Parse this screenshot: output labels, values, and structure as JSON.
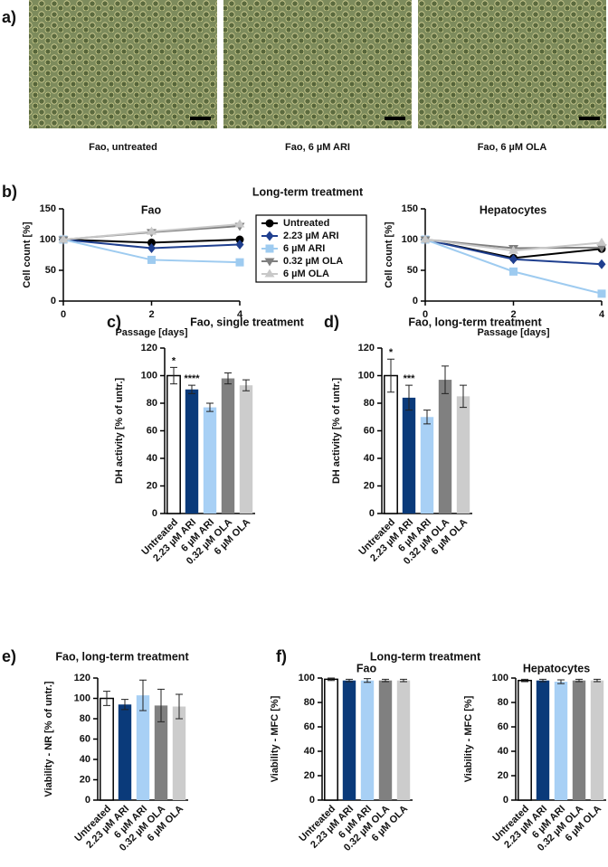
{
  "micrographs": {
    "panel": "a)",
    "captions": [
      "Fao, untreated",
      "Fao, 6 µM ARI",
      "Fao, 6 µM OLA"
    ]
  },
  "chart_data": [
    {
      "type": "line",
      "panel": "b)",
      "group_title": "Long-term treatment",
      "title": "Fao",
      "xlabel": "Passage [days]",
      "ylabel": "Cell count [%]",
      "x": [
        0,
        2,
        4
      ],
      "xlim": [
        0,
        4
      ],
      "xticks": [
        0,
        2,
        4
      ],
      "ylim": [
        0,
        150
      ],
      "yticks": [
        0,
        50,
        100,
        150
      ],
      "legend": true,
      "series": [
        {
          "name": "Untreated",
          "color": "#000000",
          "marker": "circle",
          "values": [
            100,
            95,
            100
          ]
        },
        {
          "name": "2.23 µM ARI",
          "color": "#1f3f8f",
          "marker": "diamond",
          "values": [
            100,
            86,
            92
          ]
        },
        {
          "name": "6 µM ARI",
          "color": "#9ecbf0",
          "marker": "square",
          "values": [
            100,
            67,
            63
          ]
        },
        {
          "name": "0.32 µM OLA",
          "color": "#7f7f7f",
          "marker": "triangle-down",
          "values": [
            100,
            112,
            122
          ]
        },
        {
          "name": "6 µM OLA",
          "color": "#c8c8c8",
          "marker": "triangle-up",
          "values": [
            100,
            113,
            125
          ]
        }
      ]
    },
    {
      "type": "line",
      "title": "Hepatocytes",
      "xlabel": "Passage [days]",
      "ylabel": "Cell count [%]",
      "x": [
        0,
        2,
        4
      ],
      "xlim": [
        0,
        4
      ],
      "xticks": [
        0,
        2,
        4
      ],
      "ylim": [
        0,
        150
      ],
      "yticks": [
        0,
        50,
        100,
        150
      ],
      "series": [
        {
          "color": "#000000",
          "marker": "circle",
          "values": [
            100,
            70,
            85
          ]
        },
        {
          "color": "#1f3f8f",
          "marker": "diamond",
          "values": [
            100,
            68,
            60
          ]
        },
        {
          "color": "#9ecbf0",
          "marker": "square",
          "values": [
            100,
            48,
            12
          ]
        },
        {
          "color": "#7f7f7f",
          "marker": "triangle-down",
          "values": [
            100,
            86,
            87
          ]
        },
        {
          "color": "#c8c8c8",
          "marker": "triangle-up",
          "values": [
            100,
            82,
            95
          ]
        }
      ]
    },
    {
      "type": "bar",
      "panel": "c)",
      "title": "Fao, single treatment",
      "ylabel": "DH activity [% of untr.]",
      "categories": [
        "Untreated",
        "2.23 µM ARI",
        "6 µM ARI",
        "0.32 µM OLA",
        "6 µM OLA"
      ],
      "values": [
        100,
        90,
        77,
        98,
        93
      ],
      "errors": [
        6,
        3,
        3,
        4,
        4
      ],
      "annotations": [
        "*",
        "****",
        null,
        null,
        null
      ],
      "colors": [
        "#ffffff",
        "#0a3a7a",
        "#a8d0f5",
        "#808080",
        "#cccccc"
      ],
      "ylim": [
        0,
        120
      ],
      "yticks": [
        0,
        20,
        40,
        60,
        80,
        100,
        120
      ]
    },
    {
      "type": "bar",
      "panel": "d)",
      "title": "Fao, long-term treatment",
      "ylabel": "DH activity [% of untr.]",
      "categories": [
        "Untreated",
        "2.23 µM ARI",
        "6 µM ARI",
        "0.32 µM OLA",
        "6 µM OLA"
      ],
      "values": [
        100,
        84,
        70,
        97,
        85
      ],
      "errors": [
        12,
        9,
        5,
        10,
        8
      ],
      "annotations": [
        "*",
        "***",
        null,
        null,
        null
      ],
      "colors": [
        "#ffffff",
        "#0a3a7a",
        "#a8d0f5",
        "#808080",
        "#cccccc"
      ],
      "ylim": [
        0,
        120
      ],
      "yticks": [
        0,
        20,
        40,
        60,
        80,
        100,
        120
      ]
    },
    {
      "type": "bar",
      "panel": "e)",
      "title": "Fao, long-term treatment",
      "ylabel": "Viability - NR [% of untr.]",
      "categories": [
        "Untreated",
        "2.23 µM ARI",
        "6 µM ARI",
        "0.32 µM OLA",
        "6 µM OLA"
      ],
      "values": [
        100,
        94,
        103,
        93,
        92
      ],
      "errors": [
        7,
        5,
        15,
        16,
        12
      ],
      "colors": [
        "#ffffff",
        "#0a3a7a",
        "#a8d0f5",
        "#808080",
        "#cccccc"
      ],
      "ylim": [
        0,
        120
      ],
      "yticks": [
        0,
        20,
        40,
        60,
        80,
        100,
        120
      ]
    },
    {
      "type": "bar",
      "panel": "f)",
      "group_title": "Long-term treatment",
      "title": "Fao",
      "ylabel": "Viability - MFC [%]",
      "categories": [
        "Untreated",
        "2.23 µM ARI",
        "6 µM ARI",
        "0.32 µM OLA",
        "6 µM OLA"
      ],
      "values": [
        99,
        98,
        98,
        98,
        98
      ],
      "errors": [
        1,
        1,
        1.5,
        1,
        1
      ],
      "colors": [
        "#ffffff",
        "#0a3a7a",
        "#a8d0f5",
        "#808080",
        "#cccccc"
      ],
      "ylim": [
        0,
        100
      ],
      "yticks": [
        0,
        20,
        40,
        60,
        80,
        100
      ]
    },
    {
      "type": "bar",
      "title": "Hepatocytes",
      "ylabel": "Viability - MFC [%]",
      "categories": [
        "Untreated",
        "2.23 µM ARI",
        "6 µM ARI",
        "0.32 µM OLA",
        "6 µM OLA"
      ],
      "values": [
        98,
        98,
        97,
        98,
        98
      ],
      "errors": [
        1,
        1,
        1.5,
        1,
        1
      ],
      "colors": [
        "#ffffff",
        "#0a3a7a",
        "#a8d0f5",
        "#808080",
        "#cccccc"
      ],
      "ylim": [
        0,
        100
      ],
      "yticks": [
        0,
        20,
        40,
        60,
        80,
        100
      ]
    }
  ]
}
